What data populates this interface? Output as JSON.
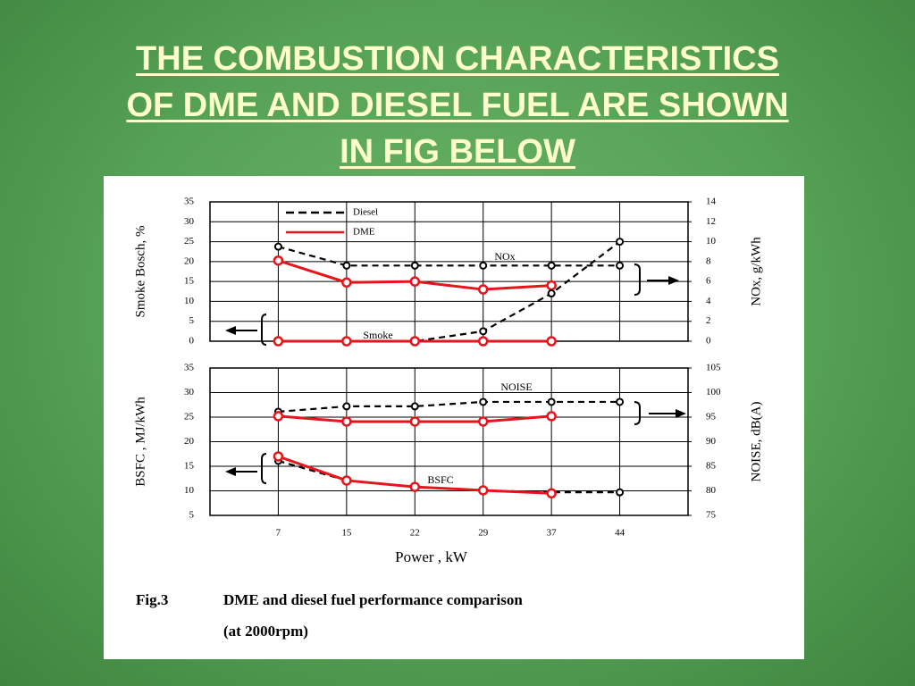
{
  "title": [
    "THE COMBUSTION CHARACTERISTICS",
    "OF DME AND DIESEL FUEL ARE SHOWN",
    "IN FIG BELOW"
  ],
  "chart_data": [
    {
      "type": "line",
      "ylabel": "Smoke Bosch, %",
      "y2label": "NOx, g/kWh",
      "ylim": [
        0,
        35
      ],
      "yticks": [
        0,
        5,
        10,
        15,
        20,
        25,
        30,
        35
      ],
      "y2lim": [
        0,
        14
      ],
      "y2ticks": [
        0,
        2,
        4,
        6,
        8,
        10,
        12,
        14
      ],
      "grid": true,
      "legend": [
        {
          "name": "Diesel",
          "color": "#000000",
          "dash": true
        },
        {
          "name": "DME",
          "color": "#e8141b",
          "dash": false
        }
      ],
      "annotations": [
        "NOx",
        "Smoke"
      ],
      "series": [
        {
          "color": "#000000",
          "dash": true,
          "axis": "y2",
          "values": [
            9.5,
            7.6,
            7.6,
            7.6,
            7.6,
            7.6
          ]
        },
        {
          "color": "#e8141b",
          "dash": false,
          "axis": "y2",
          "values": [
            8.1,
            5.9,
            6.0,
            5.2,
            5.6,
            null
          ]
        },
        {
          "color": "#000000",
          "dash": true,
          "axis": "y",
          "values": [
            0,
            0,
            0,
            2.5,
            12,
            25
          ]
        },
        {
          "color": "#e8141b",
          "dash": false,
          "axis": "y",
          "values": [
            0,
            0,
            0,
            0,
            0,
            null
          ]
        }
      ]
    },
    {
      "type": "line",
      "categories": [
        "7",
        "15",
        "22",
        "29",
        "37",
        "44"
      ],
      "xlabel": "Power , kW",
      "ylabel": "BSFC , MJ/kWh",
      "y2label": "NOISE, dB(A)",
      "ylim": [
        5,
        35
      ],
      "yticks": [
        5,
        10,
        15,
        20,
        25,
        30,
        35
      ],
      "y2lim": [
        75,
        105
      ],
      "y2ticks": [
        75,
        80,
        85,
        90,
        95,
        100,
        105
      ],
      "grid": true,
      "annotations": [
        "NOISE",
        "BSFC"
      ],
      "series": [
        {
          "color": "#000000",
          "dash": true,
          "axis": "y2",
          "values": [
            96.1,
            97.2,
            97.2,
            98.1,
            98.1,
            98.1
          ]
        },
        {
          "color": "#e8141b",
          "dash": false,
          "axis": "y2",
          "values": [
            95.2,
            94.1,
            94.1,
            94.1,
            95.2,
            null
          ]
        },
        {
          "color": "#000000",
          "dash": true,
          "axis": "y",
          "values": [
            16.1,
            12.1,
            10.8,
            10.1,
            9.7,
            9.7
          ]
        },
        {
          "color": "#e8141b",
          "dash": false,
          "axis": "y",
          "values": [
            17,
            12.1,
            10.8,
            10.1,
            9.5,
            null
          ]
        }
      ]
    }
  ],
  "caption": {
    "label": "Fig.3",
    "text": "DME and diesel fuel performance comparison",
    "note": "(at 2000rpm)"
  }
}
